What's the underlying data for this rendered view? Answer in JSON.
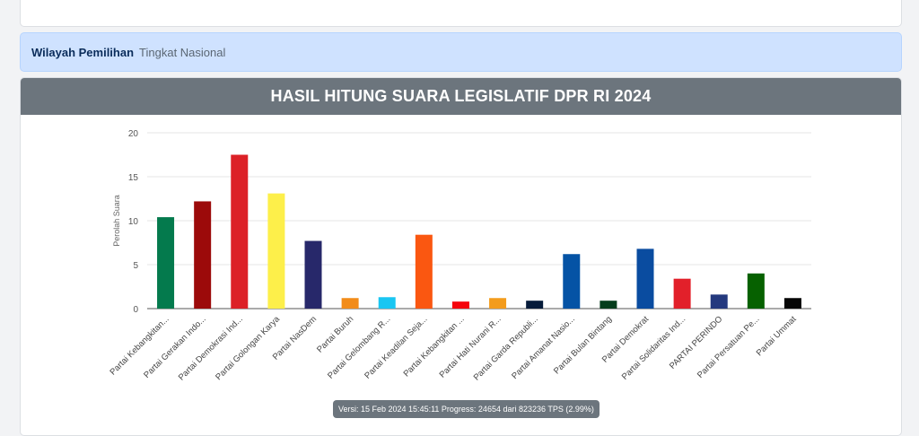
{
  "region": {
    "label": "Wilayah Pemilihan",
    "value": "Tingkat Nasional"
  },
  "chart_title": "HASIL HITUNG SUARA LEGISLATIF DPR RI 2024",
  "version_text": "Versi: 15 Feb 2024 15:45:11 Progress: 24654 dari 823236 TPS (2.99%)",
  "chart_data": {
    "type": "bar",
    "title": "HASIL HITUNG SUARA LEGISLATIF DPR RI 2024",
    "xlabel": "",
    "ylabel": "Perolah Suara",
    "ylim": [
      0,
      20
    ],
    "yticks": [
      0,
      5,
      10,
      15,
      20
    ],
    "grid": true,
    "legend": "none",
    "categories": [
      "Partai Kebangkitan...",
      "Partai Gerakan Indo...",
      "Partai Demokrasi Ind...",
      "Partai Golongan Karya",
      "Partai NasDem",
      "Partai Buruh",
      "Partai Gelombang R...",
      "Partai Keadilan Seja...",
      "Partai Kebangkitan ...",
      "Partai Hati Nurani R...",
      "Partai Garda Republi...",
      "Partai Amanat Nasio...",
      "Partai Bulan Bintang",
      "Partai Demokrat",
      "Partai Solidaritas Ind...",
      "PARTAI PERINDO",
      "Partai Persatuan Pe...",
      "Partai Ummat"
    ],
    "values": [
      10.4,
      12.2,
      17.5,
      13.1,
      7.7,
      1.2,
      1.3,
      8.4,
      0.8,
      1.2,
      0.9,
      6.2,
      0.9,
      6.8,
      3.4,
      1.6,
      4.0,
      1.2
    ],
    "colors": [
      "#047a4d",
      "#9c0a0a",
      "#dc2127",
      "#fdef4a",
      "#27286a",
      "#f28c1a",
      "#19c6f2",
      "#fa5711",
      "#f5050d",
      "#f39c1d",
      "#061b3a",
      "#0553a5",
      "#053d1c",
      "#0a4ca0",
      "#e2202a",
      "#24397e",
      "#066100",
      "#060606"
    ]
  }
}
